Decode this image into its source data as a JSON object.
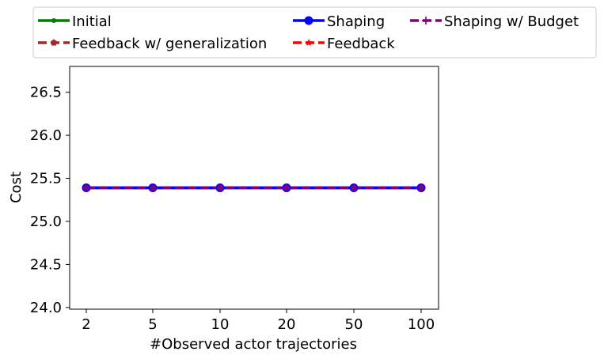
{
  "chart_data": {
    "type": "line",
    "title": "",
    "xlabel": "#Observed actor trajectories",
    "ylabel": "Cost",
    "categories": [
      "2",
      "5",
      "10",
      "20",
      "50",
      "100"
    ],
    "ylim": [
      23.98,
      26.8
    ],
    "yticks": [
      24.0,
      24.5,
      25.0,
      25.5,
      26.0,
      26.5
    ],
    "ytick_labels": [
      "24.0",
      "24.5",
      "25.0",
      "25.5",
      "26.0",
      "26.5"
    ],
    "grid": false,
    "legend": {
      "placement": "top",
      "columns": 3,
      "entries": [
        "Initial",
        "Shaping",
        "Shaping w/ Budget",
        "Feedback w/ generalization",
        "Feedback"
      ]
    },
    "series": [
      {
        "name": "Initial",
        "color": "#008000",
        "dash": "solid",
        "marker": "dot",
        "values": [
          25.39,
          25.39,
          25.39,
          25.39,
          25.39,
          25.39
        ]
      },
      {
        "name": "Shaping",
        "color": "#0000ff",
        "dash": "solid",
        "marker": "circle",
        "values": [
          25.39,
          25.39,
          25.39,
          25.39,
          25.39,
          25.39
        ]
      },
      {
        "name": "Shaping w/ Budget",
        "color": "#800080",
        "dash": "dashed",
        "marker": "plus",
        "values": [
          25.39,
          25.39,
          25.39,
          25.39,
          25.39,
          25.39
        ]
      },
      {
        "name": "Feedback w/ generalization",
        "color": "#a52a2a",
        "dash": "dashed",
        "marker": "pentagon",
        "values": [
          25.39,
          25.39,
          25.39,
          25.39,
          25.39,
          25.39
        ]
      },
      {
        "name": "Feedback",
        "color": "#ff0000",
        "dash": "dashed",
        "marker": "star",
        "values": [
          25.39,
          25.39,
          25.39,
          25.39,
          25.39,
          25.39
        ]
      }
    ]
  }
}
